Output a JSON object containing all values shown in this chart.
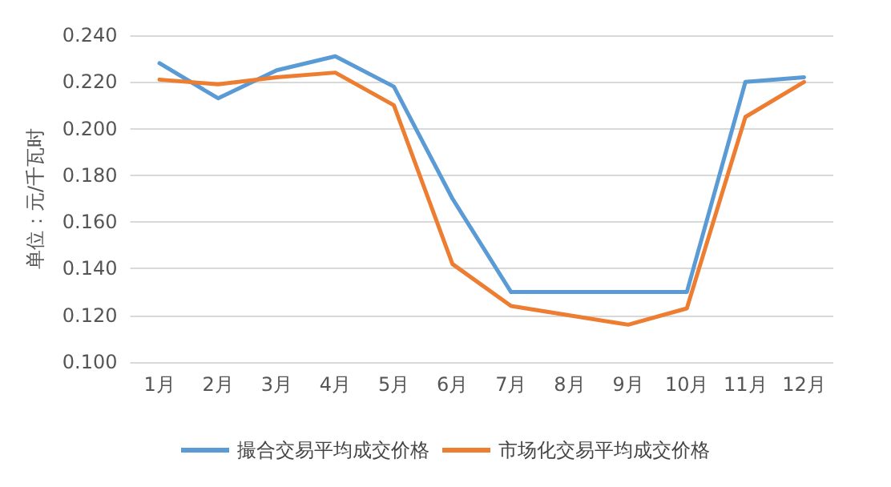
{
  "chart_data": {
    "type": "line",
    "ylabel": "单位：元/千瓦时",
    "categories": [
      "1月",
      "2月",
      "3月",
      "4月",
      "5月",
      "6月",
      "7月",
      "8月",
      "9月",
      "10月",
      "11月",
      "12月"
    ],
    "series": [
      {
        "name": "撮合交易平均成交价格",
        "color": "#5b9bd5",
        "values": [
          0.228,
          0.213,
          0.225,
          0.231,
          0.218,
          0.17,
          0.13,
          0.13,
          0.13,
          0.13,
          0.22,
          0.222
        ]
      },
      {
        "name": "市场化交易平均成交价格",
        "color": "#ed7d31",
        "values": [
          0.221,
          0.219,
          0.222,
          0.224,
          0.21,
          0.142,
          0.124,
          0.12,
          0.116,
          0.123,
          0.205,
          0.22
        ]
      }
    ],
    "ylim": [
      0.1,
      0.24
    ],
    "yticks": [
      {
        "value": 0.1,
        "label": "0.100"
      },
      {
        "value": 0.12,
        "label": "0.120"
      },
      {
        "value": 0.14,
        "label": "0.140"
      },
      {
        "value": 0.16,
        "label": "0.160"
      },
      {
        "value": 0.18,
        "label": "0.180"
      },
      {
        "value": 0.2,
        "label": "0.200"
      },
      {
        "value": 0.22,
        "label": "0.220"
      },
      {
        "value": 0.24,
        "label": "0.240"
      }
    ],
    "grid": "y",
    "legend": "bottom",
    "marker": "none",
    "line_style": "solid"
  }
}
